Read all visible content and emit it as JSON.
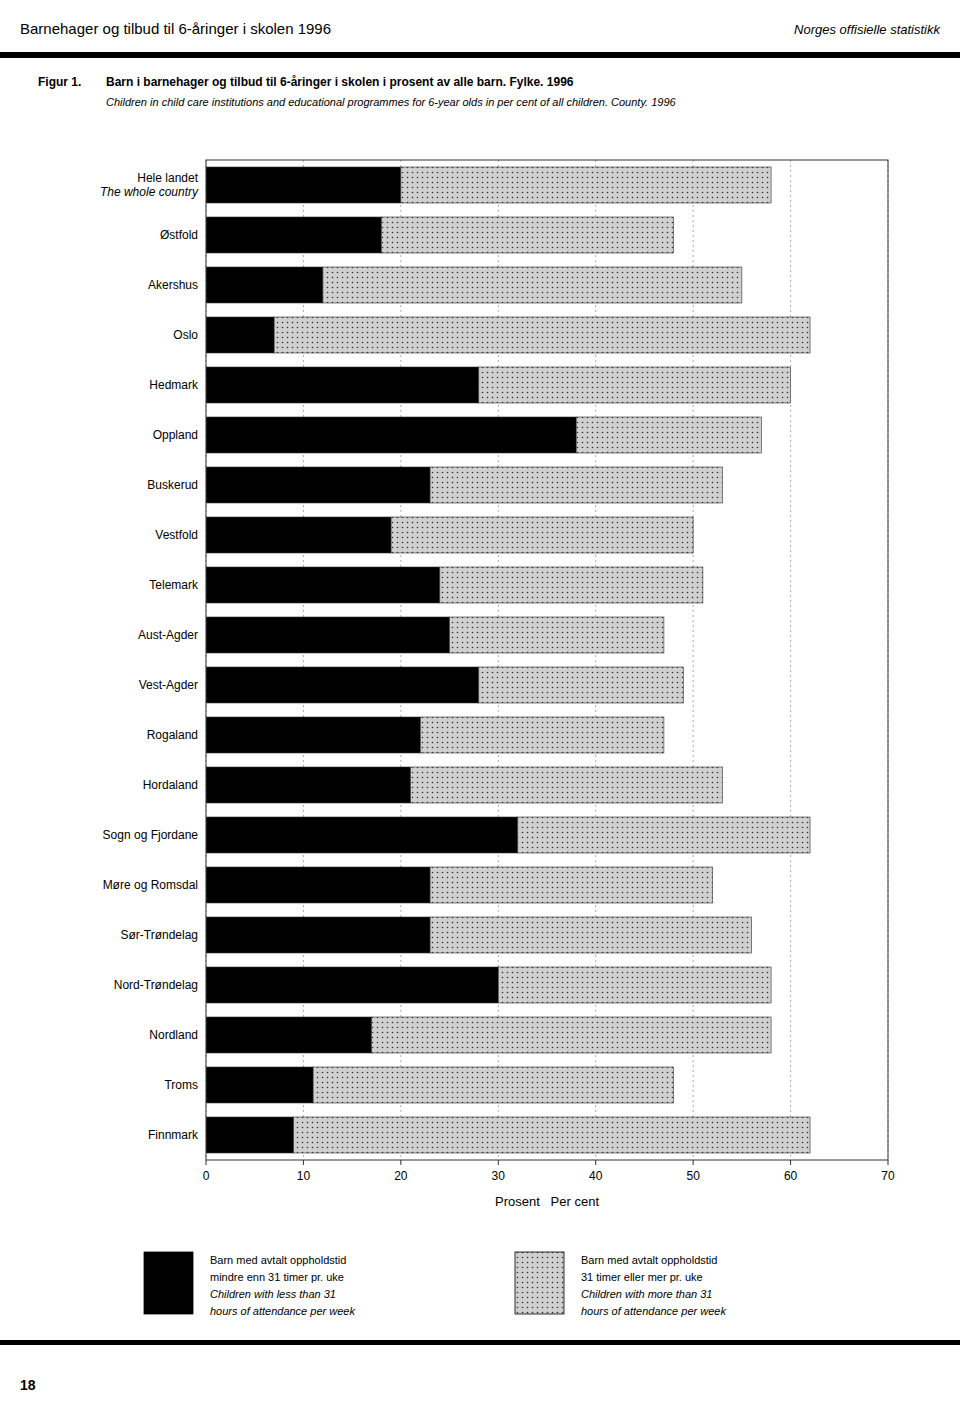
{
  "chart_data": {
    "type": "bar",
    "orientation": "horizontal",
    "stacked": true,
    "title": "Barn i barnehager og tilbud til 6-åringer i skolen i prosent av alle barn. Fylke. 1996",
    "subtitle": "Children in child care institutions and educational programmes for 6-year olds in per cent of all children. County. 1996",
    "annotations": [
      "Barnehager og tilbud til 6-åringer i skolen 1996",
      "Norges offisielle statistikk",
      "Figur 1.",
      "18"
    ],
    "xlabel": "Prosent   Per cent",
    "categories": [
      "Hele landet\nThe whole country",
      "Østfold",
      "Akershus",
      "Oslo",
      "Hedmark",
      "Oppland",
      "Buskerud",
      "Vestfold",
      "Telemark",
      "Aust-Agder",
      "Vest-Agder",
      "Rogaland",
      "Hordaland",
      "Sogn og Fjordane",
      "Møre og Romsdal",
      "Sør-Trøndelag",
      "Nord-Trøndelag",
      "Nordland",
      "Troms",
      "Finnmark"
    ],
    "series": [
      {
        "name": "Barn med avtalt oppholdstid\nmindre enn 31 timer pr. uke\nChildren with less than 31\nhours of attendance per week",
        "color": "#000000",
        "values": [
          20,
          18,
          12,
          7,
          28,
          38,
          23,
          19,
          24,
          25,
          28,
          22,
          21,
          32,
          23,
          23,
          30,
          17,
          11,
          9
        ]
      },
      {
        "name": "Barn med avtalt oppholdstid\n31 timer eller mer pr. uke\nChildren with more than 31\nhours of attendance per week",
        "color": "#d0d0d0",
        "values": [
          38,
          30,
          43,
          55,
          32,
          19,
          30,
          31,
          27,
          22,
          21,
          25,
          32,
          30,
          29,
          33,
          28,
          41,
          37,
          53
        ]
      }
    ],
    "xlim": [
      0,
      70
    ],
    "xticks": [
      0,
      10,
      20,
      30,
      40,
      50,
      60,
      70
    ],
    "grid": true,
    "legend": "bottom"
  }
}
